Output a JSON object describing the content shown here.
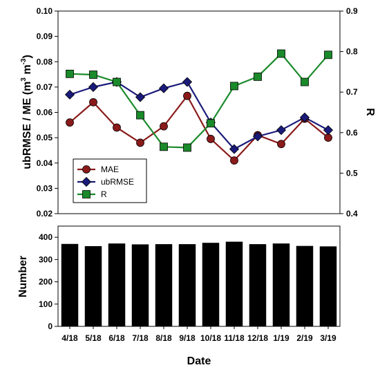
{
  "chart_data": [
    {
      "type": "line",
      "x": [
        "4/18",
        "5/18",
        "6/18",
        "7/18",
        "8/18",
        "9/18",
        "10/18",
        "11/18",
        "12/18",
        "1/19",
        "2/19",
        "3/19"
      ],
      "left_axis": {
        "label_prefix": "ubRMSE / ME (m",
        "label_mid": " m",
        "label_suffix": ")",
        "label_exponent": "3",
        "label_exponent_neg": "-3",
        "ylim": [
          0.02,
          0.1
        ],
        "ticks": [
          "0.02",
          "0.03",
          "0.04",
          "0.05",
          "0.06",
          "0.07",
          "0.08",
          "0.09",
          "0.10"
        ]
      },
      "right_axis": {
        "label": "R",
        "ylim": [
          0.4,
          0.9
        ],
        "ticks": [
          "0.4",
          "0.5",
          "0.6",
          "0.7",
          "0.8",
          "0.9"
        ]
      },
      "series": [
        {
          "name": "MAE",
          "axis": "left",
          "marker": "circle",
          "color": "#8b1a1a",
          "values": [
            0.056,
            0.064,
            0.054,
            0.048,
            0.0545,
            0.0665,
            0.0495,
            0.041,
            0.051,
            0.0475,
            0.0575,
            0.05
          ]
        },
        {
          "name": "ubRMSE",
          "axis": "left",
          "marker": "diamond",
          "color": "#1a1a7a",
          "values": [
            0.067,
            0.07,
            0.072,
            0.066,
            0.0695,
            0.072,
            0.056,
            0.0455,
            0.0505,
            0.053,
            0.058,
            0.053
          ]
        },
        {
          "name": "R",
          "axis": "right",
          "marker": "square",
          "color": "#1a8a2a",
          "values": [
            0.745,
            0.743,
            0.725,
            0.643,
            0.565,
            0.563,
            0.623,
            0.715,
            0.738,
            0.795,
            0.725,
            0.792
          ]
        }
      ],
      "legend_position": "bottom-left",
      "grid": false
    },
    {
      "type": "bar",
      "categories": [
        "4/18",
        "5/18",
        "6/18",
        "7/18",
        "8/18",
        "9/18",
        "10/18",
        "11/18",
        "12/18",
        "1/19",
        "2/19",
        "3/19"
      ],
      "values": [
        370,
        360,
        372,
        368,
        369,
        369,
        375,
        380,
        369,
        372,
        361,
        359
      ],
      "ylabel": "Number",
      "xlabel": "Date",
      "ylim": [
        0,
        450
      ],
      "ticks": [
        "0",
        "100",
        "200",
        "300",
        "400"
      ],
      "color": "#000000",
      "grid": false
    }
  ]
}
